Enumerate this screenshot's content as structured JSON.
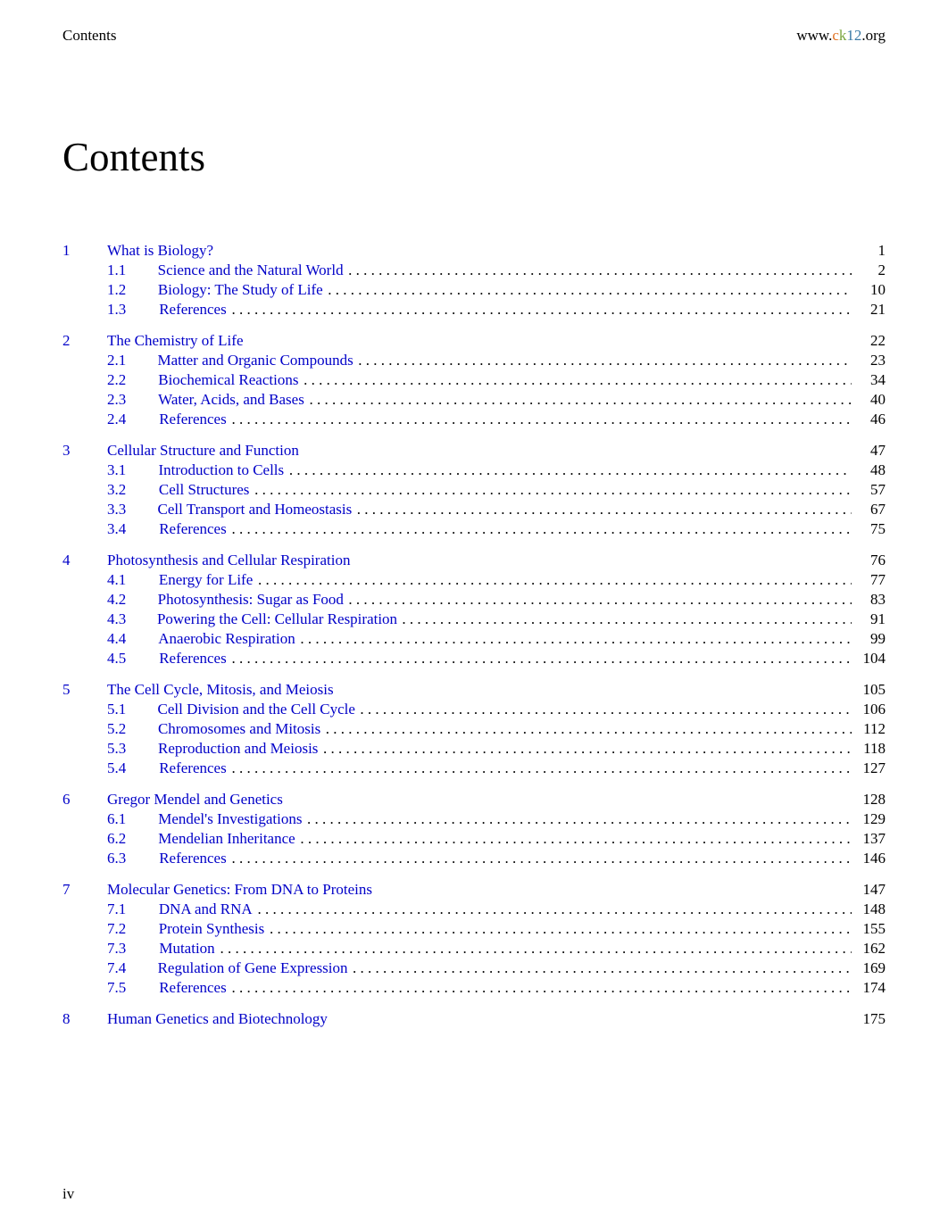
{
  "header": {
    "left": "Contents",
    "right_prefix": "www.",
    "right_c": "c",
    "right_k": "k",
    "right_12": "12",
    "right_suffix": ".org"
  },
  "title": "Contents",
  "footer": "iv",
  "colors": {
    "link": "#0000c8",
    "text": "#000000",
    "logo_c": "#e07020",
    "logo_k": "#7aa63f",
    "logo_12": "#3a7aa6"
  },
  "chapters": [
    {
      "num": "1",
      "title": "What is Biology?",
      "page": "1",
      "sections": [
        {
          "num": "1.1",
          "title": "Science and the Natural World",
          "page": "2"
        },
        {
          "num": "1.2",
          "title": "Biology: The Study of Life",
          "page": "10"
        },
        {
          "num": "1.3",
          "title": "References",
          "page": "21"
        }
      ]
    },
    {
      "num": "2",
      "title": "The Chemistry of Life",
      "page": "22",
      "sections": [
        {
          "num": "2.1",
          "title": "Matter and Organic Compounds",
          "page": "23"
        },
        {
          "num": "2.2",
          "title": "Biochemical Reactions",
          "page": "34"
        },
        {
          "num": "2.3",
          "title": "Water, Acids, and Bases",
          "page": "40"
        },
        {
          "num": "2.4",
          "title": "References",
          "page": "46"
        }
      ]
    },
    {
      "num": "3",
      "title": "Cellular Structure and Function",
      "page": "47",
      "sections": [
        {
          "num": "3.1",
          "title": "Introduction to Cells",
          "page": "48"
        },
        {
          "num": "3.2",
          "title": "Cell Structures",
          "page": "57"
        },
        {
          "num": "3.3",
          "title": "Cell Transport and Homeostasis",
          "page": "67"
        },
        {
          "num": "3.4",
          "title": "References",
          "page": "75"
        }
      ]
    },
    {
      "num": "4",
      "title": "Photosynthesis and Cellular Respiration",
      "page": "76",
      "sections": [
        {
          "num": "4.1",
          "title": "Energy for Life",
          "page": "77"
        },
        {
          "num": "4.2",
          "title": "Photosynthesis: Sugar as Food",
          "page": "83"
        },
        {
          "num": "4.3",
          "title": "Powering the Cell: Cellular Respiration",
          "page": "91"
        },
        {
          "num": "4.4",
          "title": "Anaerobic Respiration",
          "page": "99"
        },
        {
          "num": "4.5",
          "title": "References",
          "page": "104"
        }
      ]
    },
    {
      "num": "5",
      "title": "The Cell Cycle, Mitosis, and Meiosis",
      "page": "105",
      "sections": [
        {
          "num": "5.1",
          "title": "Cell Division and the Cell Cycle",
          "page": "106"
        },
        {
          "num": "5.2",
          "title": "Chromosomes and Mitosis",
          "page": "112"
        },
        {
          "num": "5.3",
          "title": "Reproduction and Meiosis",
          "page": "118"
        },
        {
          "num": "5.4",
          "title": "References",
          "page": "127"
        }
      ]
    },
    {
      "num": "6",
      "title": "Gregor Mendel and Genetics",
      "page": "128",
      "sections": [
        {
          "num": "6.1",
          "title": "Mendel's Investigations",
          "page": "129"
        },
        {
          "num": "6.2",
          "title": "Mendelian Inheritance",
          "page": "137"
        },
        {
          "num": "6.3",
          "title": "References",
          "page": "146"
        }
      ]
    },
    {
      "num": "7",
      "title": "Molecular Genetics: From DNA to Proteins",
      "page": "147",
      "sections": [
        {
          "num": "7.1",
          "title": "DNA and RNA",
          "page": "148"
        },
        {
          "num": "7.2",
          "title": "Protein Synthesis",
          "page": "155"
        },
        {
          "num": "7.3",
          "title": "Mutation",
          "page": "162"
        },
        {
          "num": "7.4",
          "title": "Regulation of Gene Expression",
          "page": "169"
        },
        {
          "num": "7.5",
          "title": "References",
          "page": "174"
        }
      ]
    },
    {
      "num": "8",
      "title": "Human Genetics and Biotechnology",
      "page": "175",
      "sections": []
    }
  ]
}
